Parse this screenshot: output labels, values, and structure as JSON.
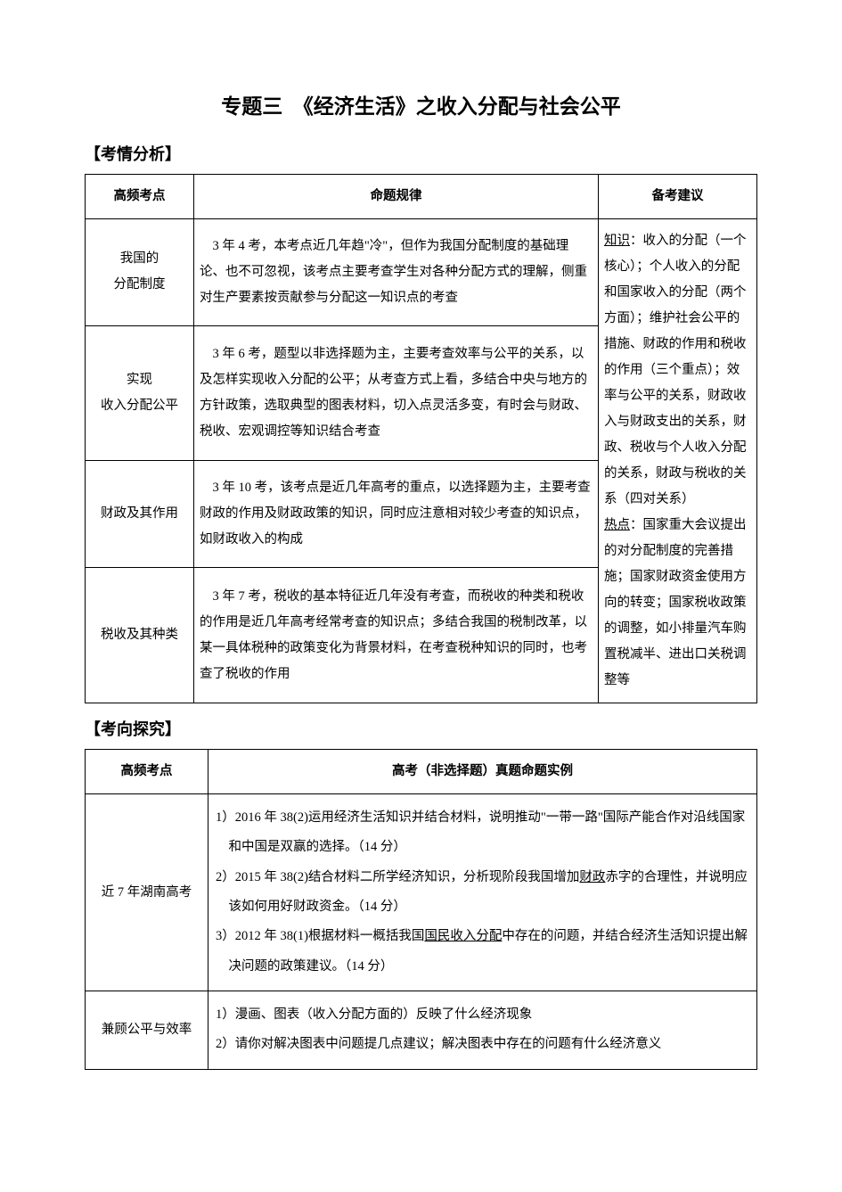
{
  "title": "专题三　《经济生活》之收入分配与社会公平",
  "section1_heading": "【考情分析】",
  "section2_heading": "【考向探究】",
  "table1": {
    "headers": {
      "col1": "高频考点",
      "col2": "命题规律",
      "col3": "备考建议"
    },
    "rows": [
      {
        "topic_line1": "我国的",
        "topic_line2": "分配制度",
        "law": "3 年 4 考，本考点近几年趋\"冷\"，但作为我国分配制度的基础理论、也不可忽视，该考点主要考查学生对各种分配方式的理解，侧重对生产要素按贡献参与分配这一知识点的考查"
      },
      {
        "topic_line1": "实现",
        "topic_line2": "收入分配公平",
        "law": "3 年 6 考，题型以非选择题为主，主要考查效率与公平的关系，以及怎样实现收入分配的公平；从考查方式上看，多结合中央与地方的方针政策，选取典型的图表材料，切入点灵活多变，有时会与财政、税收、宏观调控等知识结合考查"
      },
      {
        "topic_line1": "财政及其作用",
        "topic_line2": "",
        "law": "3 年 10 考，该考点是近几年高考的重点，以选择题为主，主要考查财政的作用及财政政策的知识，同时应注意相对较少考查的知识点，如财政收入的构成"
      },
      {
        "topic_line1": "税收及其种类",
        "topic_line2": "",
        "law": "3 年 7 考，税收的基本特征近几年没有考查，而税收的种类和税收的作用是近几年高考经常考查的知识点；多结合我国的税制改革，以某一具体税种的政策变化为背景材料，在考查税种知识的同时，也考查了税收的作用"
      }
    ],
    "suggest": {
      "knowledge_label": "知识",
      "knowledge_text": "：收入的分配（一个核心）；个人收入的分配和国家收入的分配（两个方面）；维护社会公平的措施、财政的作用和税收的作用（三个重点）；效率与公平的关系，财政收入与财政支出的关系，财政、税收与个人收入分配的关系，财政与税收的关系（四对关系）",
      "hotspot_label": "热点",
      "hotspot_text": "：国家重大会议提出的对分配制度的完善措施；国家财政资金使用方向的转变；国家税收政策的调整，如小排量汽车购置税减半、进出口关税调整等"
    }
  },
  "table2": {
    "headers": {
      "col1": "高频考点",
      "col2": "高考（非选择题）真题命题实例"
    },
    "rows": [
      {
        "topic": "近 7 年湖南高考",
        "items": [
          {
            "prefix": "1）2016 年 38(2)运用经济生活知识并结合材料，说明推动\"一带一路\"国际产能合作对沿线国家和中国是双赢的选择。（14 分）"
          },
          {
            "before": "2）2015 年 38(2)结合材料二所学经济知识，分析现阶段我国增加",
            "underlined": "财政",
            "after": "赤字的合理性，并说明应该如何用好财政资金。（14 分）"
          },
          {
            "before": "3）2012 年 38(1)根据材料一概括我国",
            "underlined": "国民收入分配",
            "after": "中存在的问题，并结合经济生活知识提出解决问题的政策建议。（14 分）"
          }
        ]
      },
      {
        "topic": "兼顾公平与效率",
        "items": [
          {
            "prefix": "1）漫画、图表（收入分配方面的）反映了什么经济现象"
          },
          {
            "prefix": "2）请你对解决图表中问题提几点建议；解决图表中存在的问题有什么经济意义"
          }
        ]
      }
    ]
  }
}
